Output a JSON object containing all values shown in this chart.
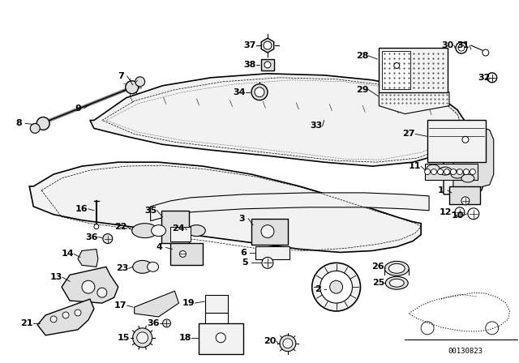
{
  "bg_color": "#ffffff",
  "part_number": "00130823",
  "fig_width": 6.4,
  "fig_height": 4.48,
  "dpi": 100,
  "line_color": "#000000",
  "fill_light": "#f2f2f2",
  "fill_mid": "#e0e0e0",
  "fill_dark": "#c8c8c8"
}
